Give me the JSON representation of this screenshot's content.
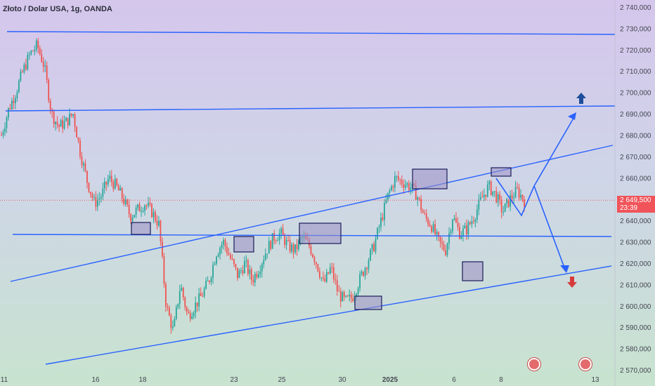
{
  "title": "Złoto / Dolar USA, 1g, OANDA",
  "price_tag": {
    "value": "2 649,500",
    "countdown": "23:39",
    "color": "#f0545a"
  },
  "colors": {
    "up": "#26a69a",
    "down": "#ef5350",
    "line": "#2962ff",
    "box_fill": "#9c8fc4",
    "box_stroke": "#1a1c5a"
  },
  "chart_data": {
    "type": "candlestick",
    "title": "Złoto / Dolar USA, 1g, OANDA",
    "y_axis": {
      "min": 2570,
      "max": 2740,
      "step": 10,
      "position": "right",
      "tick_labels": [
        "2 740,000",
        "2 730,000",
        "2 720,000",
        "2 710,000",
        "2 700,000",
        "2 690,000",
        "2 680,000",
        "2 670,000",
        "2 660,000",
        "2 650,000",
        "2 640,000",
        "2 630,000",
        "2 620,000",
        "2 610,000",
        "2 600,000",
        "2 590,000",
        "2 580,000",
        "2 570,000"
      ]
    },
    "x_axis": {
      "tick_labels": [
        "11",
        "16",
        "18",
        "23",
        "25",
        "30",
        "2025",
        "6",
        "8",
        "13"
      ],
      "bold": [
        "2025"
      ]
    },
    "current_price": 2649.5,
    "close_path": [
      [
        0,
        2680
      ],
      [
        0.02,
        2692
      ],
      [
        0.04,
        2700
      ],
      [
        0.06,
        2710
      ],
      [
        0.08,
        2718
      ],
      [
        0.1,
        2722
      ],
      [
        0.12,
        2712
      ],
      [
        0.14,
        2690
      ],
      [
        0.16,
        2684
      ],
      [
        0.18,
        2686
      ],
      [
        0.2,
        2690
      ],
      [
        0.22,
        2672
      ],
      [
        0.24,
        2658
      ],
      [
        0.26,
        2648
      ],
      [
        0.28,
        2652
      ],
      [
        0.3,
        2660
      ],
      [
        0.32,
        2656
      ],
      [
        0.34,
        2650
      ],
      [
        0.36,
        2642
      ],
      [
        0.38,
        2645
      ],
      [
        0.4,
        2648
      ],
      [
        0.42,
        2644
      ],
      [
        0.44,
        2638
      ],
      [
        0.46,
        2600
      ],
      [
        0.48,
        2588
      ],
      [
        0.5,
        2610
      ],
      [
        0.52,
        2595
      ],
      [
        0.54,
        2600
      ],
      [
        0.56,
        2605
      ],
      [
        0.58,
        2612
      ],
      [
        0.6,
        2625
      ],
      [
        0.62,
        2630
      ],
      [
        0.64,
        2622
      ],
      [
        0.66,
        2614
      ],
      [
        0.68,
        2620
      ],
      [
        0.7,
        2612
      ],
      [
        0.72,
        2618
      ],
      [
        0.74,
        2626
      ],
      [
        0.76,
        2632
      ],
      [
        0.78,
        2634
      ],
      [
        0.8,
        2628
      ],
      [
        0.82,
        2626
      ],
      [
        0.84,
        2632
      ],
      [
        0.86,
        2628
      ],
      [
        0.88,
        2620
      ],
      [
        0.9,
        2610
      ],
      [
        0.92,
        2618
      ],
      [
        0.94,
        2606
      ],
      [
        0.96,
        2602
      ],
      [
        0.98,
        2604
      ],
      [
        1.0,
        2612
      ],
      [
        1.02,
        2620
      ],
      [
        1.04,
        2628
      ],
      [
        1.06,
        2640
      ],
      [
        1.08,
        2652
      ],
      [
        1.1,
        2660
      ],
      [
        1.12,
        2658
      ],
      [
        1.14,
        2656
      ],
      [
        1.16,
        2652
      ],
      [
        1.18,
        2642
      ],
      [
        1.2,
        2638
      ],
      [
        1.22,
        2630
      ],
      [
        1.24,
        2626
      ],
      [
        1.26,
        2642
      ],
      [
        1.28,
        2634
      ],
      [
        1.3,
        2636
      ],
      [
        1.32,
        2642
      ],
      [
        1.34,
        2650
      ],
      [
        1.36,
        2656
      ],
      [
        1.38,
        2652
      ],
      [
        1.4,
        2644
      ],
      [
        1.42,
        2650
      ],
      [
        1.44,
        2654
      ],
      [
        1.46,
        2649.5
      ]
    ],
    "x_index_range": [
      0,
      1.46
    ]
  }
}
